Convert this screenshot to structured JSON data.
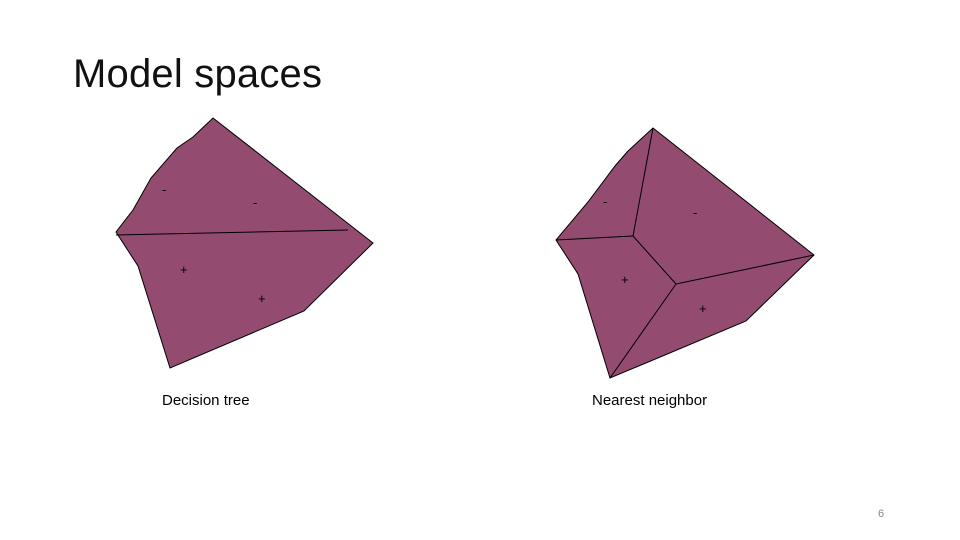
{
  "slide": {
    "title": "Model spaces",
    "page_number": "6"
  },
  "diagrams": {
    "fill_color": "#934C70",
    "stroke_color": "#000000",
    "left": {
      "caption": "Decision tree",
      "region_labels": [
        "-",
        "-",
        "+",
        "+"
      ]
    },
    "right": {
      "caption": "Nearest neighbor",
      "region_labels": [
        "-",
        "-",
        "+",
        "+"
      ]
    }
  }
}
